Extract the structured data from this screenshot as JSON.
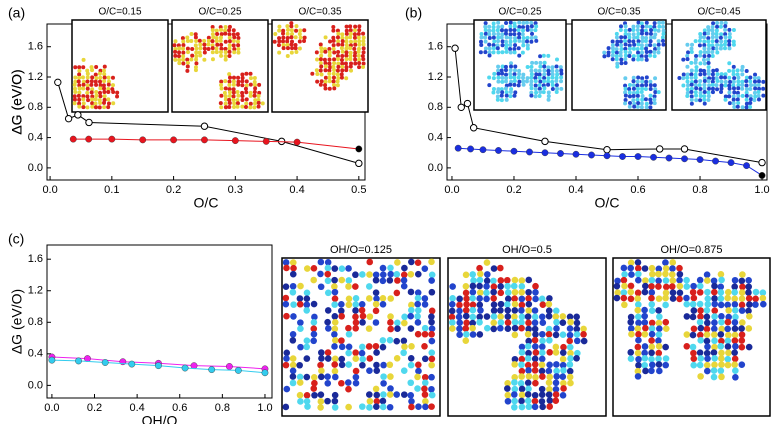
{
  "chart_data": [
    {
      "type": "line",
      "panel": "(a)",
      "xlabel": "O/C",
      "ylabel": "ΔG (eV/O)",
      "insets": [
        "O/C=0.15",
        "O/C=0.25",
        "O/C=0.35"
      ],
      "xlim": [
        -0.005,
        0.51
      ],
      "ylim": [
        -0.16,
        1.9
      ],
      "xticks": [
        {
          "value": 0,
          "label": "0.0"
        },
        0.1,
        0.2,
        0.3,
        0.4,
        0.5
      ],
      "yticks": [
        {
          "value": 0,
          "label": "0.0"
        },
        0.4,
        0.8,
        1.2,
        1.6
      ],
      "series": [
        {
          "color": "#000000",
          "marker": "open",
          "x": [
            0.0125,
            0.03,
            0.045,
            0.063,
            0.25,
            0.375,
            0.5
          ],
          "values": [
            1.13,
            0.65,
            0.7,
            0.6,
            0.55,
            0.35,
            0.06
          ]
        },
        {
          "color": "#e8141e",
          "marker": "filled",
          "last_color": "#000000",
          "x": [
            0.0375,
            0.0625,
            0.1,
            0.15,
            0.2,
            0.25,
            0.3,
            0.35,
            0.4,
            0.5
          ],
          "values": [
            0.38,
            0.38,
            0.38,
            0.37,
            0.37,
            0.37,
            0.36,
            0.35,
            0.34,
            0.25
          ]
        }
      ]
    },
    {
      "type": "line",
      "panel": "(b)",
      "xlabel": "O/C",
      "ylabel": "ΔG (eV/O)",
      "insets": [
        "O/C=0.25",
        "O/C=0.35",
        "O/C=0.45"
      ],
      "xlim": [
        -0.016,
        1.016
      ],
      "ylim": [
        -0.16,
        1.9
      ],
      "xticks": [
        {
          "value": 0,
          "label": "0.0"
        },
        0.2,
        0.4,
        0.6,
        0.8,
        {
          "value": 1,
          "label": "1.0"
        }
      ],
      "yticks": [
        {
          "value": 0,
          "label": "0.0"
        },
        0.4,
        0.8,
        1.2,
        1.6
      ],
      "series": [
        {
          "color": "#000000",
          "marker": "open",
          "x": [
            0.01,
            0.03,
            0.05,
            0.07,
            0.3,
            0.5,
            0.67,
            0.75,
            1.0
          ],
          "values": [
            1.58,
            0.8,
            0.85,
            0.53,
            0.35,
            0.24,
            0.25,
            0.25,
            0.07
          ]
        },
        {
          "color": "#1a2ee0",
          "marker": "filled",
          "last_color": "#000000",
          "x": [
            0.02,
            0.06,
            0.1,
            0.15,
            0.2,
            0.25,
            0.3,
            0.35,
            0.4,
            0.45,
            0.5,
            0.55,
            0.6,
            0.65,
            0.7,
            0.75,
            0.8,
            0.85,
            0.9,
            0.95,
            1.0
          ],
          "values": [
            0.26,
            0.25,
            0.24,
            0.23,
            0.22,
            0.21,
            0.2,
            0.19,
            0.18,
            0.17,
            0.16,
            0.15,
            0.15,
            0.14,
            0.13,
            0.12,
            0.11,
            0.09,
            0.07,
            0.03,
            -0.1
          ]
        }
      ]
    },
    {
      "type": "line",
      "panel": "(c)",
      "xlabel": "OH/O",
      "ylabel": "ΔG (eV/O)",
      "insets": [
        "OH/O=0.125",
        "OH/O=0.5",
        "OH/O=0.875"
      ],
      "xlim": [
        -0.023,
        1.033
      ],
      "ylim": [
        -0.16,
        1.78
      ],
      "xticks": [
        {
          "value": 0,
          "label": "0.0"
        },
        0.2,
        0.4,
        0.6,
        0.8,
        {
          "value": 1,
          "label": "1.0"
        }
      ],
      "yticks": [
        {
          "value": 0,
          "label": "0.0"
        },
        0.4,
        0.8,
        1.2,
        1.6
      ],
      "series": [
        {
          "color": "#ee22ee",
          "marker": "filled",
          "x": [
            0,
            0.167,
            0.333,
            0.5,
            0.667,
            0.833,
            1.0
          ],
          "values": [
            0.36,
            0.34,
            0.3,
            0.28,
            0.25,
            0.24,
            0.21
          ]
        },
        {
          "color": "#33ccee",
          "marker": "filled",
          "x": [
            0,
            0.125,
            0.25,
            0.375,
            0.5,
            0.625,
            0.75,
            0.875,
            1.0
          ],
          "values": [
            0.32,
            0.31,
            0.29,
            0.27,
            0.25,
            0.22,
            0.2,
            0.19,
            0.16
          ]
        }
      ]
    }
  ]
}
